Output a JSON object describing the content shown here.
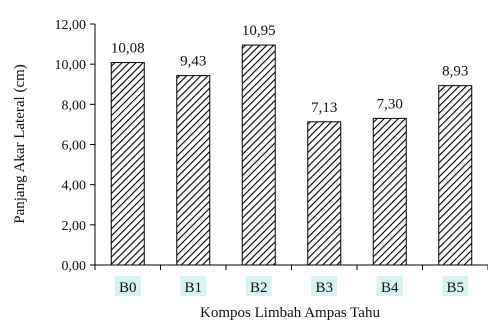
{
  "chart_data": {
    "type": "bar",
    "title": "",
    "xlabel": "Kompos Limbah Ampas Tahu",
    "ylabel": "Panjang Akar Lateral (cm)",
    "categories": [
      "B0",
      "B1",
      "B2",
      "B3",
      "B4",
      "B5"
    ],
    "values": [
      10.08,
      9.43,
      10.95,
      7.13,
      7.3,
      8.93
    ],
    "data_labels": [
      "10,08",
      "9,43",
      "10,95",
      "7,13",
      "7,30",
      "8,93"
    ],
    "ylim": [
      0,
      12
    ],
    "yticks": [
      0,
      2,
      4,
      6,
      8,
      10,
      12
    ],
    "ytick_labels": [
      "0,00",
      "2,00",
      "4,00",
      "6,00",
      "8,00",
      "10,00",
      "12,00"
    ],
    "grid": false,
    "legend": "none",
    "bar_fill": "diagonal-hatch",
    "colors": {
      "bar_stroke": "#000000",
      "hatch": "#000000",
      "category_label_bg": "#d9f3f3",
      "axis": "#000000"
    }
  }
}
